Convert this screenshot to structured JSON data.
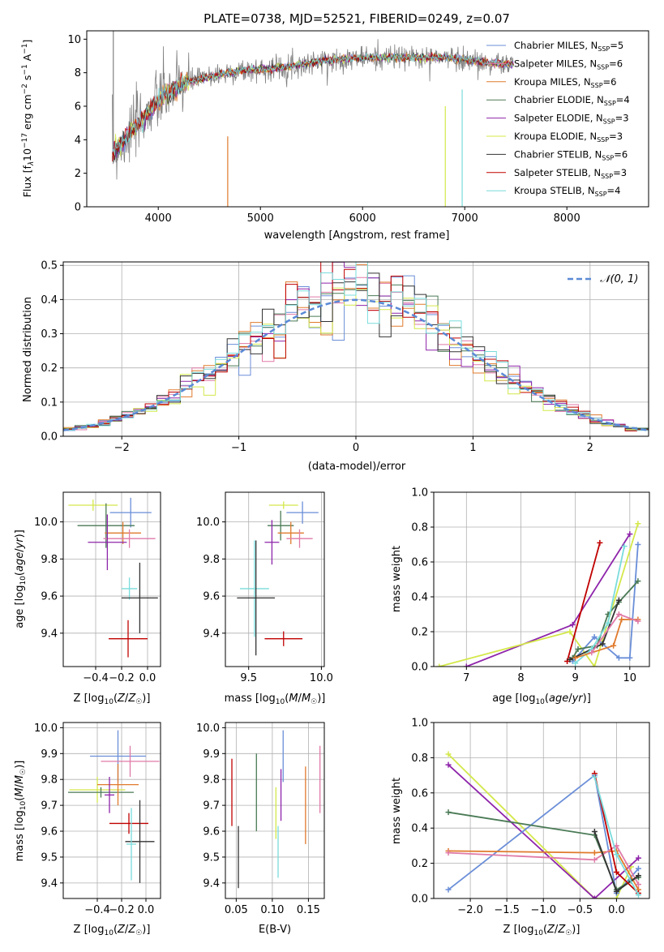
{
  "chart_data": [
    {
      "id": "spectrum",
      "type": "line",
      "title": "PLATE=0738, MJD=52521, FIBERID=0249, z=0.07",
      "xlabel": "wavelength [Angstrom, rest frame]",
      "ylabel": "Flux [f_λ 10^-17 erg cm^-2 s^-1 A^-1]",
      "xlim": [
        3300,
        8800
      ],
      "ylim": [
        0,
        10.5
      ],
      "xticks": [
        4000,
        5000,
        6000,
        7000,
        8000
      ],
      "yticks": [
        0,
        2,
        4,
        6,
        8,
        10
      ],
      "grid": false,
      "legend_position": "right",
      "legend": [
        {
          "label": "Chabrier MILES, N_SSP=5",
          "color": "#6a8ed8"
        },
        {
          "label": "Salpeter MILES, N_SSP=6",
          "color": "#e07aa8"
        },
        {
          "label": "Kroupa MILES, N_SSP=6",
          "color": "#e07a2c"
        },
        {
          "label": "Chabrier ELODIE, N_SSP=4",
          "color": "#4a7a55"
        },
        {
          "label": "Salpeter ELODIE, N_SSP=3",
          "color": "#8e24aa"
        },
        {
          "label": "Kroupa ELODIE, N_SSP=3",
          "color": "#d4e84a"
        },
        {
          "label": "Chabrier STELIB, N_SSP=6",
          "color": "#333333"
        },
        {
          "label": "Salpeter STELIB, N_SSP=3",
          "color": "#c00000"
        },
        {
          "label": "Kroupa STELIB, N_SSP=4",
          "color": "#7adcdc"
        }
      ],
      "data_color": "#808080",
      "model_curve": {
        "x": [
          3550,
          3650,
          3750,
          3850,
          3950,
          4050,
          4150,
          4250,
          4400,
          4600,
          4800,
          5000,
          5200,
          5400,
          5600,
          5800,
          6000,
          6200,
          6400,
          6600,
          6800,
          7000,
          7200,
          7400
        ],
        "y": [
          3.2,
          3.8,
          4.6,
          5.3,
          6.0,
          6.6,
          7.0,
          7.4,
          7.6,
          7.9,
          8.1,
          8.2,
          8.3,
          8.5,
          8.7,
          8.8,
          8.9,
          8.9,
          8.9,
          8.9,
          8.9,
          8.8,
          8.6,
          8.5
        ]
      }
    },
    {
      "id": "residuals",
      "type": "histogram",
      "xlabel": "(data-model)/error",
      "ylabel": "Normed distribution",
      "xlim": [
        -2.5,
        2.5
      ],
      "ylim": [
        0,
        0.51
      ],
      "xticks": [
        -2,
        -1,
        0,
        1,
        2
      ],
      "yticks": [
        0.0,
        0.1,
        0.2,
        0.3,
        0.4,
        0.5
      ],
      "grid": true,
      "legend_position": "upper-right",
      "reference_curve": {
        "label": "𝒩(0, 1)",
        "color": "#5b8ad6"
      },
      "bin_width": 0.1
    },
    {
      "id": "age-vs-Z",
      "type": "errorbar",
      "xlabel": "Z [log10(Z/Z☉)]",
      "ylabel": "age  [log10(age/yr)]",
      "xlim": [
        -0.65,
        0.1
      ],
      "ylim": [
        9.22,
        10.16
      ],
      "xticks": [
        -0.4,
        -0.2,
        0.0
      ],
      "yticks": [
        9.4,
        9.6,
        9.8,
        10.0
      ],
      "grid": true,
      "points": [
        {
          "x": -0.13,
          "y": 10.05,
          "xerr": 0.16,
          "yerr": 0.08,
          "color": "#6a8ed8"
        },
        {
          "x": -0.42,
          "y": 10.09,
          "xerr": 0.19,
          "yerr": 0.03,
          "color": "#d4e84a"
        },
        {
          "x": -0.32,
          "y": 9.98,
          "xerr": 0.22,
          "yerr": 0.12,
          "color": "#4a7a55"
        },
        {
          "x": -0.19,
          "y": 9.94,
          "xerr": 0.14,
          "yerr": 0.06,
          "color": "#e07a2c"
        },
        {
          "x": -0.14,
          "y": 9.91,
          "xerr": 0.2,
          "yerr": 0.05,
          "color": "#e07aa8"
        },
        {
          "x": -0.31,
          "y": 9.89,
          "xerr": 0.15,
          "yerr": 0.15,
          "color": "#8e24aa"
        },
        {
          "x": -0.14,
          "y": 9.64,
          "xerr": 0.06,
          "yerr": 0.06,
          "color": "#7adcdc"
        },
        {
          "x": -0.06,
          "y": 9.59,
          "xerr": 0.14,
          "yerr": 0.19,
          "color": "#333333"
        },
        {
          "x": -0.15,
          "y": 9.37,
          "xerr": 0.15,
          "yerr": 0.1,
          "color": "#c00000"
        }
      ]
    },
    {
      "id": "age-vs-mass",
      "type": "errorbar",
      "xlabel": "mass [log10(M/M☉)]",
      "xlim": [
        9.34,
        10.02
      ],
      "ylim": [
        9.22,
        10.16
      ],
      "xticks": [
        9.5,
        10.0
      ],
      "yticks": [
        9.4,
        9.6,
        9.8,
        10.0
      ],
      "grid": true,
      "points": [
        {
          "x": 9.87,
          "y": 10.05,
          "xerr": 0.11,
          "yerr": 0.06,
          "color": "#6a8ed8"
        },
        {
          "x": 9.74,
          "y": 10.09,
          "xerr": 0.1,
          "yerr": 0.02,
          "color": "#d4e84a"
        },
        {
          "x": 9.72,
          "y": 9.98,
          "xerr": 0.09,
          "yerr": 0.08,
          "color": "#4a7a55"
        },
        {
          "x": 9.79,
          "y": 9.94,
          "xerr": 0.09,
          "yerr": 0.06,
          "color": "#e07a2c"
        },
        {
          "x": 9.85,
          "y": 9.91,
          "xerr": 0.09,
          "yerr": 0.05,
          "color": "#e07aa8"
        },
        {
          "x": 9.66,
          "y": 9.89,
          "xerr": 0.05,
          "yerr": 0.12,
          "color": "#8e24aa"
        },
        {
          "x": 9.54,
          "y": 9.64,
          "xerr": 0.1,
          "yerr": 0.26,
          "color": "#7adcdc"
        },
        {
          "x": 9.55,
          "y": 9.59,
          "xerr": 0.13,
          "yerr": 0.31,
          "color": "#333333"
        },
        {
          "x": 9.74,
          "y": 9.37,
          "xerr": 0.13,
          "yerr": 0.04,
          "color": "#c00000"
        }
      ]
    },
    {
      "id": "massweight-vs-age",
      "type": "line",
      "xlabel": "age  [log10(age/yr)]",
      "ylabel": "mass weight",
      "xlim": [
        6.4,
        10.36
      ],
      "ylim": [
        0,
        1.0
      ],
      "xticks": [
        7,
        8,
        9,
        10
      ],
      "yticks": [
        0.0,
        0.2,
        0.4,
        0.6,
        0.8,
        1.0
      ],
      "grid": true,
      "series": [
        {
          "color": "#8e24aa",
          "x": [
            7.0,
            8.95,
            10.0
          ],
          "y": [
            0.0,
            0.24,
            0.76
          ]
        },
        {
          "color": "#d4e84a",
          "x": [
            6.5,
            8.9,
            9.35,
            10.15
          ],
          "y": [
            0.0,
            0.2,
            0.0,
            0.82
          ]
        },
        {
          "color": "#c00000",
          "x": [
            8.85,
            9.45
          ],
          "y": [
            0.03,
            0.71
          ]
        },
        {
          "color": "#6a8ed8",
          "x": [
            8.95,
            9.35,
            9.8,
            10.0,
            10.15
          ],
          "y": [
            0.03,
            0.17,
            0.05,
            0.05,
            0.7
          ]
        },
        {
          "color": "#4a7a55",
          "x": [
            8.95,
            9.05,
            9.4,
            9.6,
            9.8,
            10.15
          ],
          "y": [
            0.05,
            0.1,
            0.12,
            0.3,
            0.37,
            0.49
          ]
        },
        {
          "color": "#333333",
          "x": [
            8.9,
            9.5,
            9.8
          ],
          "y": [
            0.04,
            0.13,
            0.38
          ]
        },
        {
          "color": "#7adcdc",
          "x": [
            9.0,
            9.3,
            9.6,
            9.9
          ],
          "y": [
            0.02,
            0.1,
            0.25,
            0.69
          ]
        },
        {
          "color": "#e07a2c",
          "x": [
            9.0,
            9.7,
            9.85,
            10.15
          ],
          "y": [
            0.05,
            0.12,
            0.27,
            0.27
          ]
        },
        {
          "color": "#e07aa8",
          "x": [
            9.3,
            9.8,
            10.15
          ],
          "y": [
            0.08,
            0.3,
            0.26
          ]
        }
      ]
    },
    {
      "id": "mass-vs-Z",
      "type": "errorbar",
      "xlabel": "Z [log10(Z/Z☉)]",
      "ylabel": "mass [log10(M/M☉)]",
      "xlim": [
        -0.68,
        0.12
      ],
      "ylim": [
        9.34,
        10.02
      ],
      "xticks": [
        -0.4,
        -0.2,
        0.0
      ],
      "yticks": [
        9.4,
        9.5,
        9.6,
        9.7,
        9.8,
        9.9,
        10.0
      ],
      "grid": true,
      "points": [
        {
          "x": -0.23,
          "y": 9.89,
          "xerr": 0.23,
          "yerr": 0.1,
          "color": "#6a8ed8"
        },
        {
          "x": -0.13,
          "y": 9.87,
          "xerr": 0.24,
          "yerr": 0.06,
          "color": "#e07aa8"
        },
        {
          "x": -0.4,
          "y": 9.76,
          "xerr": 0.23,
          "yerr": 0.05,
          "color": "#d4e84a"
        },
        {
          "x": -0.37,
          "y": 9.75,
          "xerr": 0.27,
          "yerr": 0.02,
          "color": "#4a7a55"
        },
        {
          "x": -0.23,
          "y": 9.78,
          "xerr": 0.17,
          "yerr": 0.08,
          "color": "#e07a2c"
        },
        {
          "x": -0.3,
          "y": 9.74,
          "xerr": 0.04,
          "yerr": 0.07,
          "color": "#8e24aa"
        },
        {
          "x": -0.14,
          "y": 9.63,
          "xerr": 0.16,
          "yerr": 0.04,
          "color": "#c00000"
        },
        {
          "x": -0.05,
          "y": 9.56,
          "xerr": 0.12,
          "yerr": 0.16,
          "color": "#333333"
        },
        {
          "x": -0.12,
          "y": 9.55,
          "xerr": 0.04,
          "yerr": 0.14,
          "color": "#7adcdc"
        }
      ]
    },
    {
      "id": "mass-vs-EBV",
      "type": "errorbar",
      "xlabel": "E(B-V)",
      "xlim": [
        0.035,
        0.172
      ],
      "ylim": [
        9.34,
        10.02
      ],
      "xticks": [
        0.05,
        0.1,
        0.15
      ],
      "yticks": [
        9.4,
        9.5,
        9.6,
        9.7,
        9.8,
        9.9,
        10.0
      ],
      "grid": true,
      "points": [
        {
          "x": 0.044,
          "y": 9.75,
          "yerr": 0.13,
          "color": "#c00000"
        },
        {
          "x": 0.053,
          "y": 9.5,
          "yerr": 0.12,
          "color": "#333333"
        },
        {
          "x": 0.078,
          "y": 9.75,
          "yerr": 0.15,
          "color": "#4a7a55"
        },
        {
          "x": 0.105,
          "y": 9.67,
          "yerr": 0.1,
          "color": "#d4e84a"
        },
        {
          "x": 0.108,
          "y": 9.52,
          "yerr": 0.1,
          "color": "#7adcdc"
        },
        {
          "x": 0.112,
          "y": 9.74,
          "yerr": 0.1,
          "color": "#8e24aa"
        },
        {
          "x": 0.115,
          "y": 9.89,
          "yerr": 0.1,
          "color": "#6a8ed8"
        },
        {
          "x": 0.146,
          "y": 9.7,
          "yerr": 0.15,
          "color": "#e07a2c"
        },
        {
          "x": 0.166,
          "y": 9.8,
          "yerr": 0.13,
          "color": "#e07aa8"
        }
      ]
    },
    {
      "id": "massweight-vs-Z",
      "type": "line",
      "xlabel": "Z [log10(Z/Z☉)]",
      "ylabel": "mass weight",
      "xlim": [
        -2.5,
        0.45
      ],
      "ylim": [
        0,
        1.0
      ],
      "xticks": [
        -2.0,
        -1.5,
        -1.0,
        -0.5,
        0.0
      ],
      "yticks": [
        0.0,
        0.2,
        0.4,
        0.6,
        0.8,
        1.0
      ],
      "grid": true,
      "series": [
        {
          "color": "#d4e84a",
          "x": [
            -2.3,
            -0.3,
            0.0,
            0.2
          ],
          "y": [
            0.82,
            0.0,
            0.0,
            0.18
          ]
        },
        {
          "color": "#8e24aa",
          "x": [
            -2.3,
            -0.3,
            0.3
          ],
          "y": [
            0.76,
            0.0,
            0.23
          ]
        },
        {
          "color": "#6a8ed8",
          "x": [
            -2.3,
            -0.3,
            0.0,
            0.3
          ],
          "y": [
            0.05,
            0.7,
            0.03,
            0.17
          ]
        },
        {
          "color": "#4a7a55",
          "x": [
            -2.3,
            -0.3,
            0.0,
            0.2,
            0.3
          ],
          "y": [
            0.49,
            0.36,
            0.05,
            0.1,
            0.12
          ]
        },
        {
          "color": "#e07a2c",
          "x": [
            -2.3,
            -0.3,
            0.0,
            0.3
          ],
          "y": [
            0.27,
            0.26,
            0.27,
            0.05
          ]
        },
        {
          "color": "#e07aa8",
          "x": [
            -2.3,
            -0.3,
            0.0,
            0.3
          ],
          "y": [
            0.26,
            0.22,
            0.3,
            0.08
          ]
        },
        {
          "color": "#333333",
          "x": [
            -0.3,
            0.0,
            0.3
          ],
          "y": [
            0.38,
            0.04,
            0.13
          ]
        },
        {
          "color": "#c00000",
          "x": [
            -0.3,
            0.0,
            0.3
          ],
          "y": [
            0.71,
            0.15,
            0.03
          ]
        },
        {
          "color": "#7adcdc",
          "x": [
            -0.3,
            0.0,
            0.3
          ],
          "y": [
            0.69,
            0.25,
            0.02
          ]
        }
      ]
    }
  ]
}
